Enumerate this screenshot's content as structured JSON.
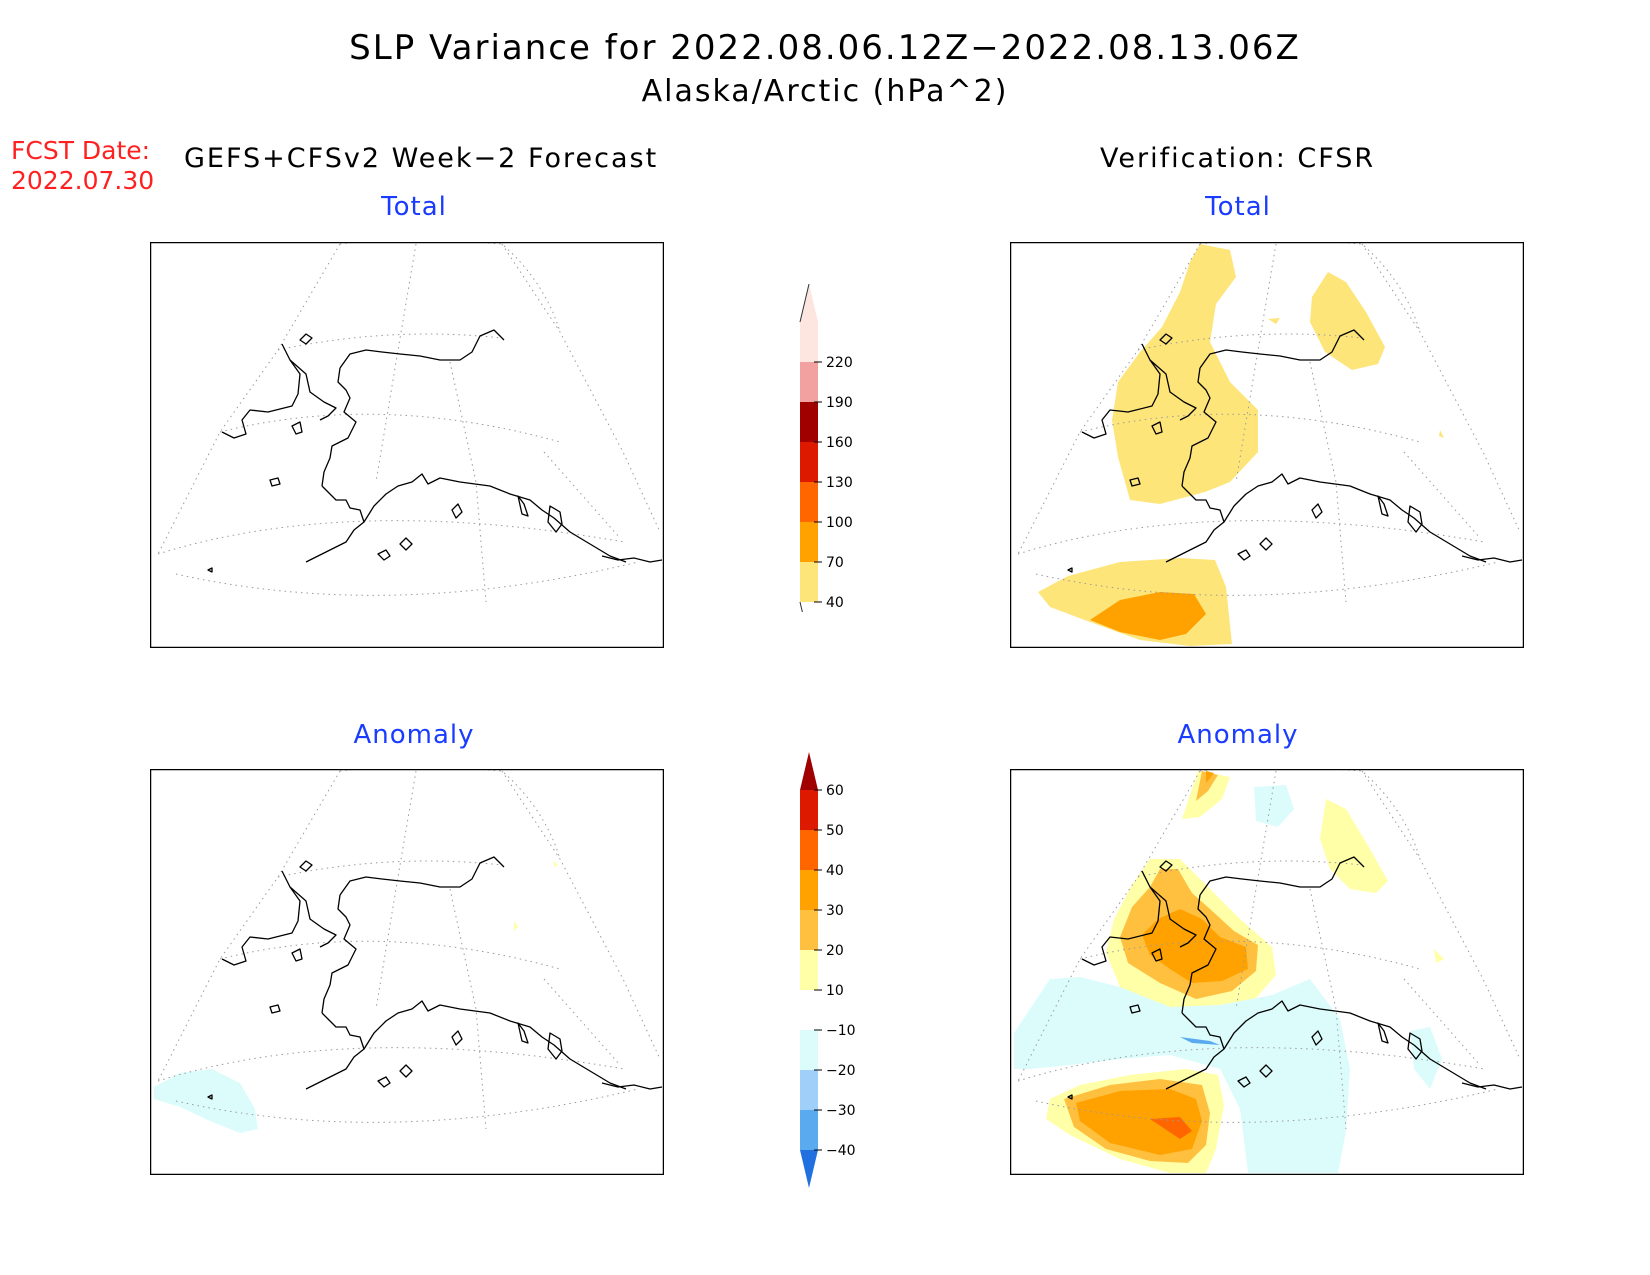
{
  "header": {
    "title": "SLP Variance for 2022.08.06.12Z−2022.08.13.06Z",
    "subtitle": "Alaska/Arctic (hPa^2)",
    "fcst_label": "FCST Date:",
    "fcst_date": "2022.07.30",
    "forecast_heading": "GEFS+CFSv2 Week−2 Forecast",
    "verification_heading": "Verification: CFSR"
  },
  "panels": {
    "forecast_total": {
      "title": "Total"
    },
    "verification_total": {
      "title": "Total"
    },
    "forecast_anomaly": {
      "title": "Anomaly"
    },
    "verification_anomaly": {
      "title": "Anomaly"
    }
  },
  "colorbar_total": {
    "levels": [
      "220",
      "190",
      "160",
      "130",
      "100",
      "70",
      "40"
    ],
    "colors": [
      "#fde5e0",
      "#f2a0a0",
      "#a00000",
      "#dd1a00",
      "#ff6600",
      "#ffa200",
      "#fde57a"
    ]
  },
  "colorbar_anomaly": {
    "levels": [
      "60",
      "50",
      "40",
      "30",
      "20",
      "10",
      "−10",
      "−20",
      "−30",
      "−40"
    ],
    "colors": [
      "#a00000",
      "#dd1a00",
      "#ff6600",
      "#ffa200",
      "#ffc040",
      "#ffffa8",
      "#ffffff",
      "#dcfcfc",
      "#a0d0fa",
      "#5aaaf0",
      "#2070e0"
    ]
  }
}
